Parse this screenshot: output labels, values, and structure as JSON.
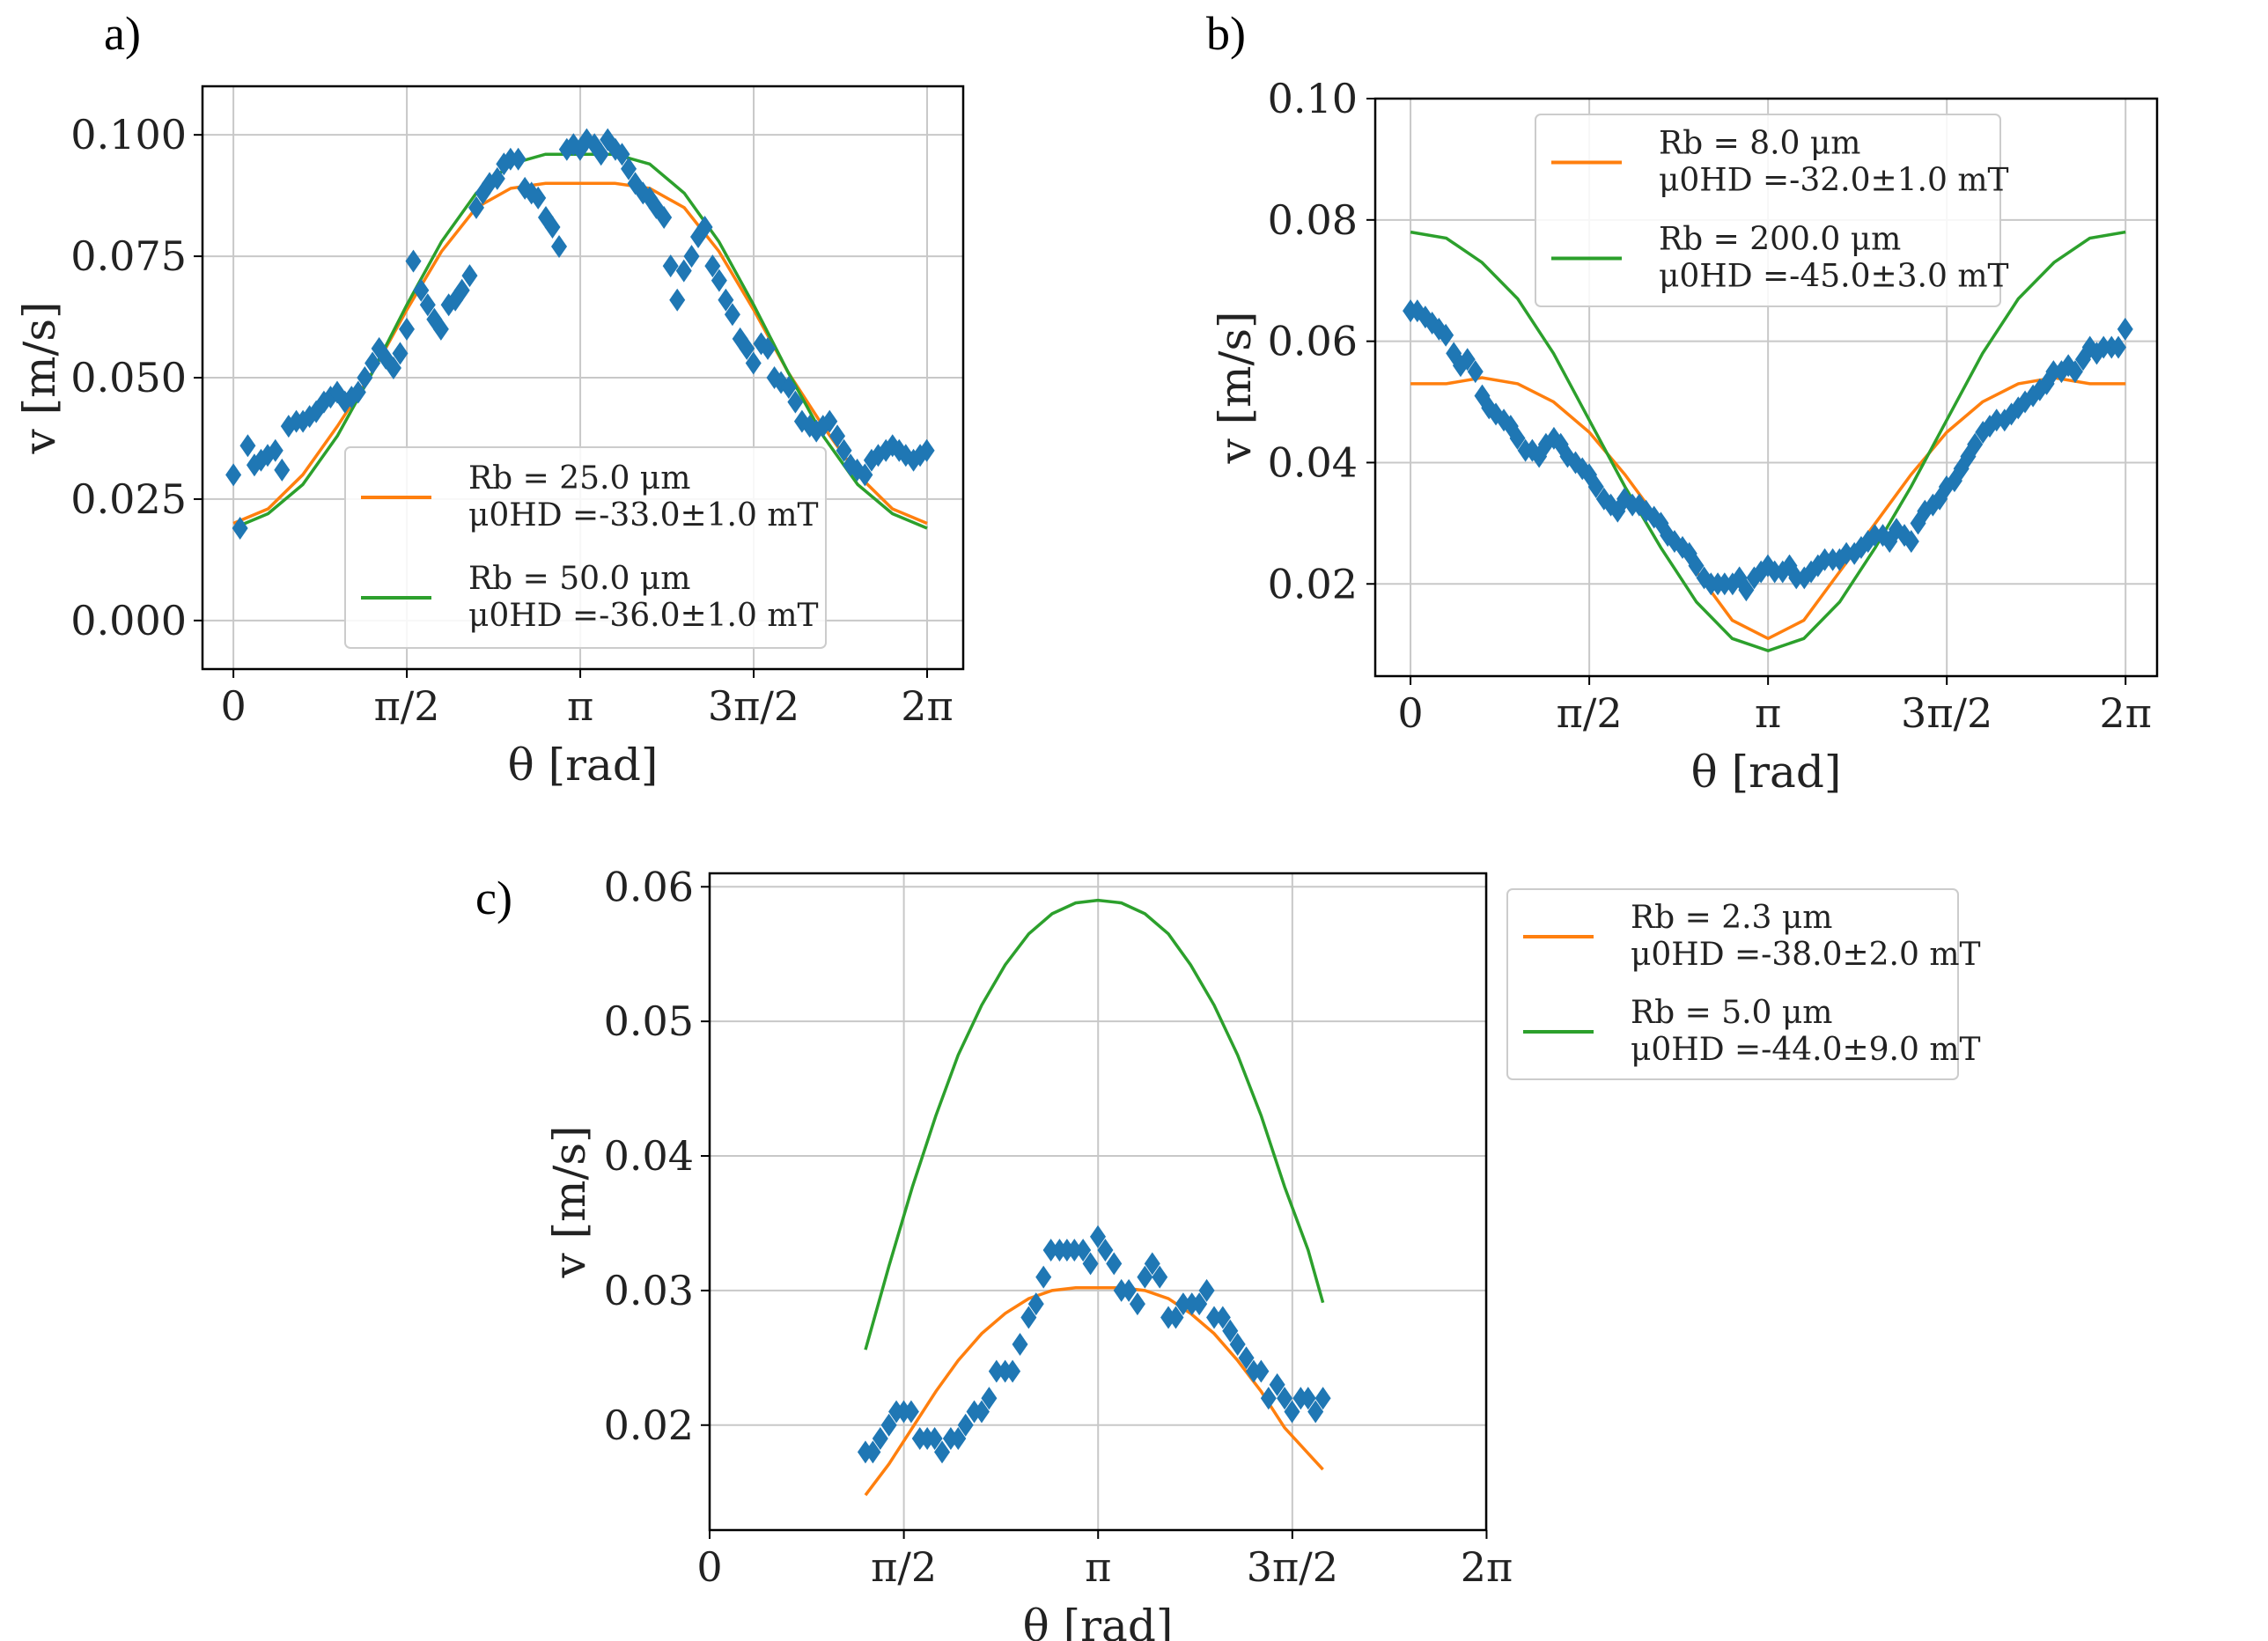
{
  "figure": {
    "panels": [
      "a)",
      "b)",
      "c)"
    ]
  },
  "chart_data": [
    {
      "panel": "a)",
      "type": "scatter",
      "xlabel": "θ [rad]",
      "ylabel": "v [m/s]",
      "xlim": [
        -0.28,
        6.61
      ],
      "ylim": [
        -0.01,
        0.11
      ],
      "xticks": [
        {
          "v": 0,
          "label": "0"
        },
        {
          "v": 1.5708,
          "label": "π/2"
        },
        {
          "v": 3.1416,
          "label": "π"
        },
        {
          "v": 4.7124,
          "label": "3π/2"
        },
        {
          "v": 6.2832,
          "label": "2π"
        }
      ],
      "yticks": [
        {
          "v": 0.0,
          "label": "0.000"
        },
        {
          "v": 0.025,
          "label": "0.025"
        },
        {
          "v": 0.05,
          "label": "0.050"
        },
        {
          "v": 0.075,
          "label": "0.075"
        },
        {
          "v": 0.1,
          "label": "0.100"
        }
      ],
      "legend": "lower-right",
      "data_points": {
        "x": [
          0,
          0.06,
          0.13,
          0.19,
          0.25,
          0.31,
          0.38,
          0.44,
          0.5,
          0.57,
          0.63,
          0.69,
          0.75,
          0.82,
          0.88,
          0.94,
          1.01,
          1.07,
          1.13,
          1.19,
          1.26,
          1.32,
          1.38,
          1.45,
          1.51,
          1.57,
          1.63,
          1.7,
          1.76,
          1.82,
          1.88,
          1.95,
          2.01,
          2.07,
          2.14,
          2.2,
          2.26,
          2.32,
          2.39,
          2.45,
          2.51,
          2.58,
          2.64,
          2.7,
          2.76,
          2.83,
          2.89,
          2.95,
          3.02,
          3.08,
          3.14,
          3.2,
          3.27,
          3.33,
          3.39,
          3.46,
          3.52,
          3.58,
          3.64,
          3.71,
          3.77,
          3.83,
          3.9,
          3.96,
          4.02,
          4.08,
          4.15,
          4.21,
          4.27,
          4.34,
          4.4,
          4.46,
          4.52,
          4.59,
          4.65,
          4.71,
          4.78,
          4.84,
          4.9,
          4.96,
          5.03,
          5.09,
          5.15,
          5.22,
          5.28,
          5.34,
          5.4,
          5.47,
          5.53,
          5.59,
          5.65,
          5.72,
          5.78,
          5.84,
          5.91,
          5.97,
          6.03,
          6.09,
          6.16,
          6.22,
          6.28
        ],
        "y": [
          0.03,
          0.019,
          0.036,
          0.032,
          0.033,
          0.034,
          0.035,
          0.031,
          0.04,
          0.041,
          0.041,
          0.042,
          0.043,
          0.045,
          0.046,
          0.047,
          0.045,
          0.046,
          0.047,
          0.05,
          0.053,
          0.056,
          0.054,
          0.052,
          0.055,
          0.06,
          0.074,
          0.068,
          0.065,
          0.062,
          0.06,
          0.065,
          0.066,
          0.068,
          0.071,
          0.085,
          0.088,
          0.09,
          0.091,
          0.094,
          0.095,
          0.095,
          0.089,
          0.088,
          0.087,
          0.083,
          0.081,
          0.077,
          0.097,
          0.098,
          0.097,
          0.099,
          0.098,
          0.096,
          0.099,
          0.097,
          0.096,
          0.093,
          0.09,
          0.088,
          0.087,
          0.085,
          0.083,
          0.073,
          0.066,
          0.072,
          0.075,
          0.079,
          0.081,
          0.073,
          0.07,
          0.066,
          0.063,
          0.058,
          0.056,
          0.053,
          0.057,
          0.056,
          0.05,
          0.049,
          0.048,
          0.045,
          0.041,
          0.04,
          0.039,
          0.04,
          0.041,
          0.038,
          0.035,
          0.032,
          0.031,
          0.03,
          0.033,
          0.034,
          0.035,
          0.036,
          0.035,
          0.034,
          0.033,
          0.034,
          0.035
        ]
      },
      "series": [
        {
          "name": "Rb = 25.0 μm, μ0HD =-33.0±1.0 mT",
          "color": "#ff7f0e",
          "x": [
            0,
            0.314,
            0.628,
            0.942,
            1.257,
            1.571,
            1.885,
            2.199,
            2.513,
            2.827,
            3.142,
            3.456,
            3.77,
            4.084,
            4.398,
            4.712,
            5.027,
            5.341,
            5.655,
            5.969,
            6.283
          ],
          "y": [
            0.02,
            0.023,
            0.03,
            0.04,
            0.051,
            0.064,
            0.076,
            0.085,
            0.089,
            0.09,
            0.09,
            0.09,
            0.089,
            0.085,
            0.076,
            0.064,
            0.051,
            0.04,
            0.03,
            0.023,
            0.02
          ]
        },
        {
          "name": "Rb = 50.0 μm, μ0HD =-36.0±1.0 mT",
          "color": "#2ca02c",
          "x": [
            0,
            0.314,
            0.628,
            0.942,
            1.257,
            1.571,
            1.885,
            2.199,
            2.513,
            2.827,
            3.142,
            3.456,
            3.77,
            4.084,
            4.398,
            4.712,
            5.027,
            5.341,
            5.655,
            5.969,
            6.283
          ],
          "y": [
            0.019,
            0.022,
            0.028,
            0.038,
            0.051,
            0.065,
            0.078,
            0.088,
            0.094,
            0.096,
            0.096,
            0.096,
            0.094,
            0.088,
            0.078,
            0.065,
            0.051,
            0.038,
            0.028,
            0.022,
            0.019
          ]
        }
      ],
      "legend_entries": [
        {
          "line1": "Rb = 25.0 μm",
          "line2": "μ0HD =-33.0±1.0 mT"
        },
        {
          "line1": "Rb = 50.0 μm",
          "line2": "μ0HD =-36.0±1.0 mT"
        }
      ]
    },
    {
      "panel": "b)",
      "type": "scatter",
      "xlabel": "θ [rad]",
      "ylabel": "v [m/s]",
      "xlim": [
        -0.31,
        6.56
      ],
      "ylim": [
        0.0048,
        0.1
      ],
      "xticks": [
        {
          "v": 0,
          "label": "0"
        },
        {
          "v": 1.5708,
          "label": "π/2"
        },
        {
          "v": 3.1416,
          "label": "π"
        },
        {
          "v": 4.7124,
          "label": "3π/2"
        },
        {
          "v": 6.2832,
          "label": "2π"
        }
      ],
      "yticks": [
        {
          "v": 0.02,
          "label": "0.02"
        },
        {
          "v": 0.04,
          "label": "0.04"
        },
        {
          "v": 0.06,
          "label": "0.06"
        },
        {
          "v": 0.08,
          "label": "0.08"
        },
        {
          "v": 0.1,
          "label": "0.10"
        }
      ],
      "legend": "top-center",
      "data_points": {
        "x": [
          0,
          0.06,
          0.13,
          0.19,
          0.25,
          0.31,
          0.38,
          0.44,
          0.5,
          0.57,
          0.63,
          0.69,
          0.75,
          0.82,
          0.88,
          0.94,
          1.01,
          1.07,
          1.13,
          1.19,
          1.26,
          1.32,
          1.38,
          1.45,
          1.51,
          1.57,
          1.63,
          1.7,
          1.76,
          1.82,
          1.88,
          1.95,
          2.01,
          2.07,
          2.14,
          2.2,
          2.26,
          2.32,
          2.39,
          2.45,
          2.51,
          2.58,
          2.64,
          2.7,
          2.76,
          2.83,
          2.89,
          2.95,
          3.02,
          3.08,
          3.14,
          3.2,
          3.27,
          3.33,
          3.39,
          3.46,
          3.52,
          3.58,
          3.64,
          3.71,
          3.77,
          3.83,
          3.9,
          3.96,
          4.02,
          4.08,
          4.15,
          4.21,
          4.27,
          4.34,
          4.4,
          4.46,
          4.52,
          4.59,
          4.65,
          4.71,
          4.78,
          4.84,
          4.9,
          4.96,
          5.03,
          5.09,
          5.15,
          5.22,
          5.28,
          5.34,
          5.4,
          5.47,
          5.53,
          5.59,
          5.65,
          5.72,
          5.78,
          5.84,
          5.91,
          5.97,
          6.03,
          6.09,
          6.16,
          6.22,
          6.28
        ],
        "y": [
          0.065,
          0.065,
          0.064,
          0.063,
          0.062,
          0.061,
          0.058,
          0.056,
          0.057,
          0.055,
          0.051,
          0.049,
          0.048,
          0.047,
          0.046,
          0.044,
          0.042,
          0.042,
          0.041,
          0.043,
          0.044,
          0.043,
          0.041,
          0.04,
          0.039,
          0.038,
          0.036,
          0.034,
          0.033,
          0.032,
          0.034,
          0.033,
          0.033,
          0.032,
          0.031,
          0.03,
          0.028,
          0.027,
          0.026,
          0.025,
          0.023,
          0.021,
          0.02,
          0.02,
          0.02,
          0.02,
          0.021,
          0.019,
          0.021,
          0.022,
          0.023,
          0.022,
          0.022,
          0.023,
          0.021,
          0.021,
          0.022,
          0.023,
          0.024,
          0.024,
          0.024,
          0.025,
          0.025,
          0.026,
          0.027,
          0.028,
          0.028,
          0.027,
          0.029,
          0.028,
          0.027,
          0.03,
          0.032,
          0.033,
          0.034,
          0.036,
          0.037,
          0.039,
          0.041,
          0.043,
          0.045,
          0.046,
          0.047,
          0.047,
          0.048,
          0.049,
          0.05,
          0.051,
          0.052,
          0.053,
          0.055,
          0.055,
          0.056,
          0.055,
          0.057,
          0.059,
          0.058,
          0.059,
          0.059,
          0.059,
          0.062
        ]
      },
      "series": [
        {
          "name": "Rb = 8.0 μm, μ0HD =-32.0±1.0 mT",
          "color": "#ff7f0e",
          "x": [
            0,
            0.314,
            0.628,
            0.942,
            1.257,
            1.571,
            1.885,
            2.199,
            2.513,
            2.827,
            3.142,
            3.456,
            3.77,
            4.084,
            4.398,
            4.712,
            5.027,
            5.341,
            5.655,
            5.969,
            6.283
          ],
          "y": [
            0.053,
            0.053,
            0.054,
            0.053,
            0.05,
            0.045,
            0.038,
            0.03,
            0.022,
            0.014,
            0.011,
            0.014,
            0.022,
            0.03,
            0.038,
            0.045,
            0.05,
            0.053,
            0.054,
            0.053,
            0.053
          ]
        },
        {
          "name": "Rb = 200.0 μm, μ0HD =-45.0±3.0 mT",
          "color": "#2ca02c",
          "x": [
            0,
            0.314,
            0.628,
            0.942,
            1.257,
            1.571,
            1.885,
            2.199,
            2.513,
            2.827,
            3.142,
            3.456,
            3.77,
            4.084,
            4.398,
            4.712,
            5.027,
            5.341,
            5.655,
            5.969,
            6.283
          ],
          "y": [
            0.078,
            0.077,
            0.073,
            0.067,
            0.058,
            0.047,
            0.036,
            0.026,
            0.017,
            0.011,
            0.009,
            0.011,
            0.017,
            0.026,
            0.036,
            0.047,
            0.058,
            0.067,
            0.073,
            0.077,
            0.078
          ]
        }
      ],
      "legend_entries": [
        {
          "line1": "Rb = 8.0 μm",
          "line2": "μ0HD =-32.0±1.0 mT"
        },
        {
          "line1": "Rb = 200.0 μm",
          "line2": "μ0HD =-45.0±3.0 mT"
        }
      ]
    },
    {
      "panel": "c)",
      "type": "scatter",
      "xlabel": "θ [rad]",
      "ylabel": "v [m/s]",
      "xlim": [
        0,
        6.28
      ],
      "ylim": [
        0.0122,
        0.061
      ],
      "xticks": [
        {
          "v": 0,
          "label": "0"
        },
        {
          "v": 1.5708,
          "label": "π/2"
        },
        {
          "v": 3.1416,
          "label": "π"
        },
        {
          "v": 4.7124,
          "label": "3π/2"
        },
        {
          "v": 6.2832,
          "label": "2π"
        }
      ],
      "yticks": [
        {
          "v": 0.02,
          "label": "0.02"
        },
        {
          "v": 0.03,
          "label": "0.03"
        },
        {
          "v": 0.04,
          "label": "0.04"
        },
        {
          "v": 0.05,
          "label": "0.05"
        },
        {
          "v": 0.06,
          "label": "0.06"
        }
      ],
      "legend": "outside-right",
      "data_points": {
        "x": [
          1.26,
          1.32,
          1.38,
          1.45,
          1.51,
          1.57,
          1.63,
          1.7,
          1.76,
          1.82,
          1.88,
          1.95,
          2.01,
          2.07,
          2.14,
          2.2,
          2.26,
          2.32,
          2.39,
          2.45,
          2.51,
          2.58,
          2.64,
          2.7,
          2.76,
          2.83,
          2.89,
          2.95,
          3.02,
          3.08,
          3.14,
          3.2,
          3.27,
          3.33,
          3.39,
          3.46,
          3.52,
          3.58,
          3.64,
          3.71,
          3.77,
          3.83,
          3.9,
          3.96,
          4.02,
          4.08,
          4.15,
          4.21,
          4.27,
          4.34,
          4.4,
          4.46,
          4.52,
          4.59,
          4.65,
          4.71,
          4.78,
          4.84,
          4.9,
          4.96
        ],
        "y": [
          0.018,
          0.018,
          0.019,
          0.02,
          0.021,
          0.021,
          0.021,
          0.019,
          0.019,
          0.019,
          0.018,
          0.019,
          0.019,
          0.02,
          0.021,
          0.021,
          0.022,
          0.024,
          0.024,
          0.024,
          0.026,
          0.028,
          0.029,
          0.031,
          0.033,
          0.033,
          0.033,
          0.033,
          0.033,
          0.032,
          0.034,
          0.033,
          0.032,
          0.03,
          0.03,
          0.029,
          0.031,
          0.032,
          0.031,
          0.028,
          0.028,
          0.029,
          0.029,
          0.029,
          0.03,
          0.028,
          0.028,
          0.027,
          0.026,
          0.025,
          0.024,
          0.024,
          0.022,
          0.023,
          0.022,
          0.021,
          0.022,
          0.022,
          0.021,
          0.022
        ]
      },
      "series": [
        {
          "name": "Rb = 2.3 μm, μ0HD =-38.0±2.0 mT",
          "color": "#ff7f0e",
          "x": [
            1.26,
            1.45,
            1.64,
            1.83,
            2.01,
            2.2,
            2.39,
            2.58,
            2.77,
            2.96,
            3.14,
            3.33,
            3.52,
            3.71,
            3.89,
            4.08,
            4.27,
            4.46,
            4.65,
            4.84,
            4.96
          ],
          "y": [
            0.0148,
            0.0171,
            0.0198,
            0.0225,
            0.0248,
            0.0268,
            0.0283,
            0.0294,
            0.03,
            0.0302,
            0.0302,
            0.0302,
            0.03,
            0.0294,
            0.0283,
            0.0268,
            0.0248,
            0.0225,
            0.0198,
            0.0179,
            0.0167
          ]
        },
        {
          "name": "Rb = 5.0 μm, μ0HD =-44.0±9.0 mT",
          "color": "#2ca02c",
          "x": [
            1.26,
            1.45,
            1.64,
            1.83,
            2.01,
            2.2,
            2.39,
            2.58,
            2.77,
            2.96,
            3.14,
            3.33,
            3.52,
            3.71,
            3.89,
            4.08,
            4.27,
            4.46,
            4.65,
            4.84,
            4.96
          ],
          "y": [
            0.0256,
            0.0318,
            0.0377,
            0.043,
            0.0475,
            0.0512,
            0.0542,
            0.0565,
            0.058,
            0.0588,
            0.059,
            0.0588,
            0.058,
            0.0565,
            0.0542,
            0.0512,
            0.0475,
            0.043,
            0.0377,
            0.033,
            0.0291
          ]
        }
      ],
      "legend_entries": [
        {
          "line1": "Rb = 2.3 μm",
          "line2": "μ0HD =-38.0±2.0 mT"
        },
        {
          "line1": "Rb = 5.0 μm",
          "line2": "μ0HD =-44.0±9.0 mT"
        }
      ]
    }
  ],
  "style": {
    "marker_color": "#1f77b4",
    "grid_color": "#c8c8c8"
  }
}
